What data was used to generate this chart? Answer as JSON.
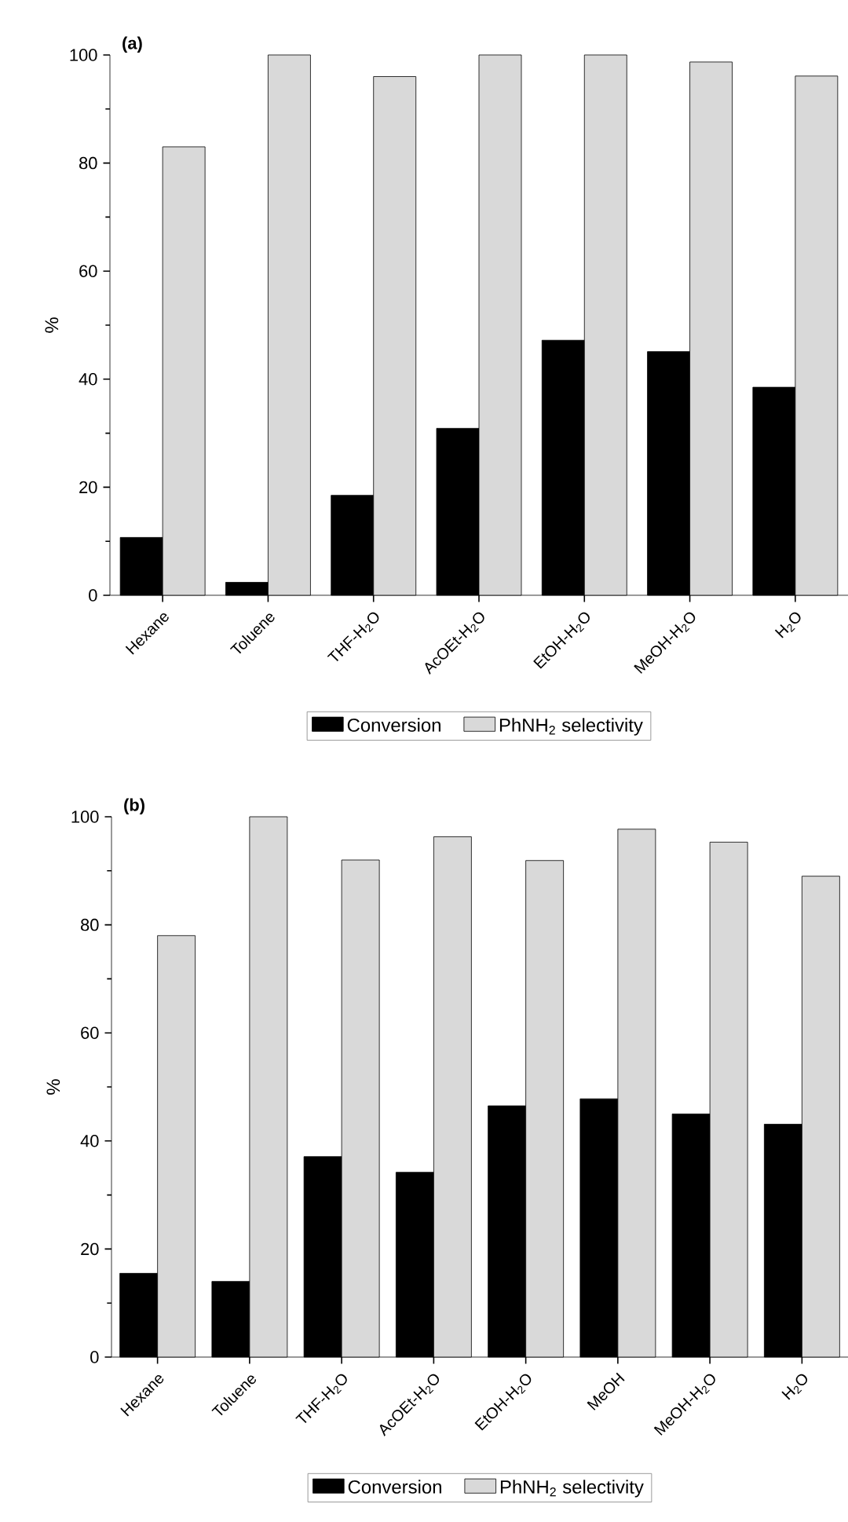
{
  "chart_data": [
    {
      "type": "bar",
      "title": "(a)",
      "ylabel": "%",
      "categories": [
        "Hexane",
        "Toluene",
        "THF-H$_{2}$O",
        "AcOEt-H$_{2}$O",
        "EtOH-H$_{2}$O",
        "MeOH-H$_{2}$O",
        "H$_{2}$O"
      ],
      "series": [
        {
          "name": "Conversion",
          "color": "#000000",
          "values": [
            10.7,
            2.4,
            18.5,
            30.9,
            47.2,
            45.1,
            38.5
          ]
        },
        {
          "name": "PhNH$_{2}$ selectivity",
          "color": "#d9d9d9",
          "values": [
            83,
            100,
            96,
            100,
            100,
            98.7,
            96.1
          ]
        }
      ],
      "ylim": [
        0,
        100
      ],
      "yticks": [
        0,
        20,
        40,
        60,
        80,
        100
      ],
      "legend": "bottom"
    },
    {
      "type": "bar",
      "title": "(b)",
      "ylabel": "%",
      "categories": [
        "Hexane",
        "Toluene",
        "THF-H$_{2}$O",
        "AcOEt-H$_{2}$O",
        "EtOH-H$_{2}$O",
        "MeOH",
        "MeOH-H$_{2}$O",
        "H$_{2}$O"
      ],
      "series": [
        {
          "name": "Conversion",
          "color": "#000000",
          "values": [
            15.5,
            14,
            37.1,
            34.2,
            46.5,
            47.8,
            45,
            43.1
          ]
        },
        {
          "name": "PhNH$_{2}$ selectivity",
          "color": "#d9d9d9",
          "values": [
            78,
            100,
            92,
            96.3,
            91.9,
            97.7,
            95.3,
            89
          ]
        }
      ],
      "ylim": [
        0,
        100
      ],
      "yticks": [
        0,
        20,
        40,
        60,
        80,
        100
      ],
      "legend": "bottom"
    }
  ]
}
